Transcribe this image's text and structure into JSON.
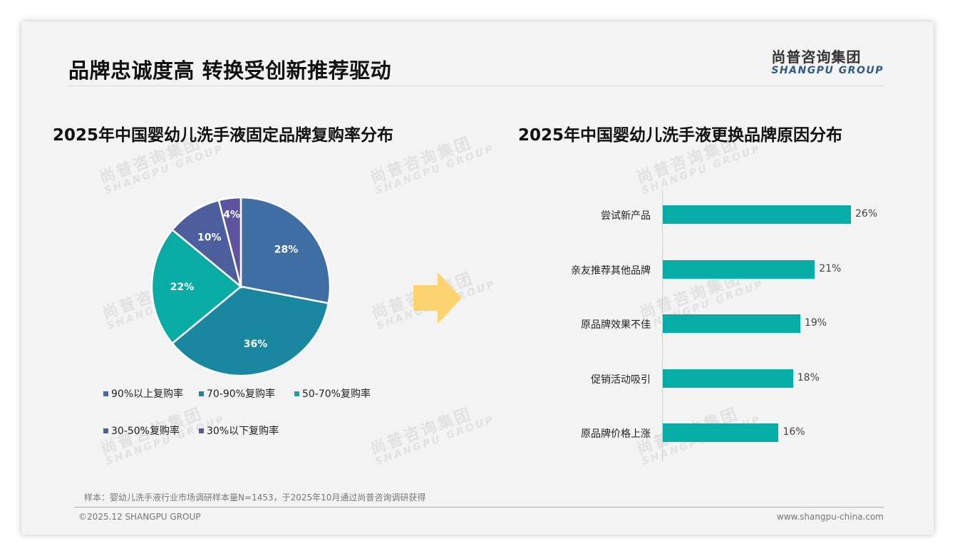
{
  "header": {
    "title": "品牌忠诚度高 转换受创新推荐驱动",
    "logo_cn": "尚普咨询集团",
    "logo_en": "SHANGPU GROUP"
  },
  "watermark": {
    "cn": "尚普咨询集团",
    "en": "SHANGPU GROUP"
  },
  "colors": {
    "pie": [
      "#3f6ea5",
      "#1a87a0",
      "#08aca5",
      "#4c5e9c",
      "#5d539e"
    ],
    "bar": "#06ada6",
    "arrow": "#fdd36f",
    "logo_en": "#2f5b8a"
  },
  "chart_data": [
    {
      "type": "pie",
      "title": "2025年中国婴幼儿洗手液固定品牌复购率分布",
      "categories": [
        "90%以上复购率",
        "70-90%复购率",
        "50-70%复购率",
        "30-50%复购率",
        "30%以下复购率"
      ],
      "values": [
        28,
        36,
        22,
        10,
        4
      ],
      "labels": [
        "28%",
        "36%",
        "22%",
        "10%",
        "4%"
      ],
      "legend_position": "bottom"
    },
    {
      "type": "bar",
      "orientation": "horizontal",
      "title": "2025年中国婴幼儿洗手液更换品牌原因分布",
      "categories": [
        "尝试新产品",
        "亲友推荐其他品牌",
        "原品牌效果不佳",
        "促销活动吸引",
        "原品牌价格上涨"
      ],
      "values": [
        26,
        21,
        19,
        18,
        16
      ],
      "labels": [
        "26%",
        "21%",
        "19%",
        "18%",
        "16%"
      ],
      "xlabel": "",
      "ylabel": "",
      "grid": false
    }
  ],
  "footer": {
    "note": "样本：婴幼儿洗手液行业市场调研样本量N=1453，于2025年10月通过尚普咨询调研获得",
    "copyright": "©2025.12 SHANGPU GROUP",
    "website": "www.shangpu-china.com"
  }
}
